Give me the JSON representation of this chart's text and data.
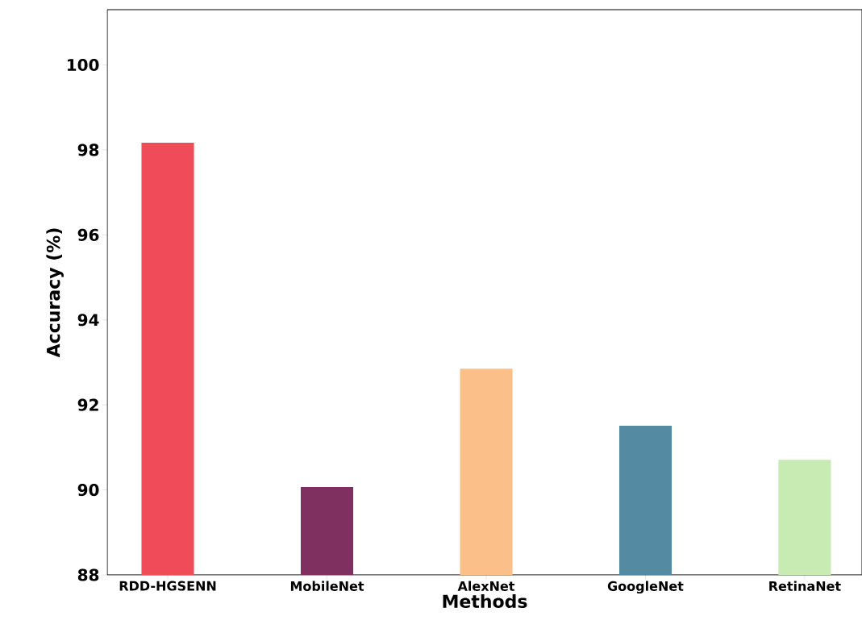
{
  "chart_data": {
    "type": "bar",
    "xlabel": "Methods",
    "ylabel": "Accuracy (%)",
    "categories": [
      "RDD-HGSENN",
      "MobileNet",
      "AlexNet",
      "GoogleNet",
      "RetinaNet"
    ],
    "values": [
      98.17,
      90.07,
      92.85,
      91.51,
      90.71
    ],
    "colors": [
      "#ef4b58",
      "#7f3061",
      "#fbbf89",
      "#548ba2",
      "#c8ebb3"
    ],
    "ylim": [
      88,
      101.3
    ],
    "yticks": [
      88,
      90,
      92,
      94,
      96,
      98,
      100
    ]
  }
}
